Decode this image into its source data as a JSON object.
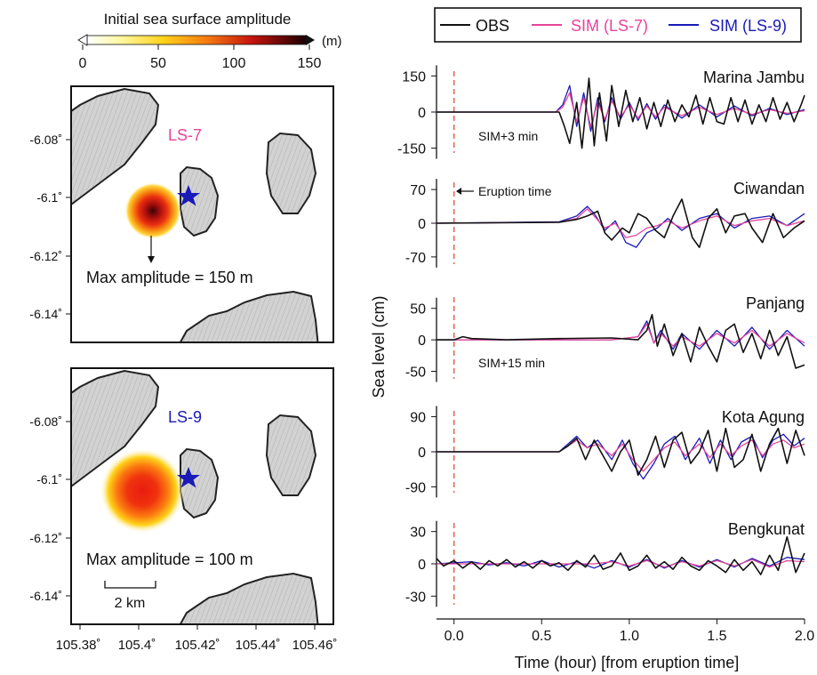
{
  "colorbar": {
    "title": "Initial sea surface amplitude",
    "unit": "(m)",
    "ticks": [
      "0",
      "50",
      "100",
      "150"
    ]
  },
  "maps": {
    "lat_ticks": [
      "-6.08˚",
      "-6.1˚",
      "-6.12˚",
      "-6.14˚"
    ],
    "lon_ticks": [
      "105.38˚",
      "105.4˚",
      "105.42˚",
      "105.44˚",
      "105.46˚"
    ],
    "top": {
      "label": "LS-7",
      "label_color": "#e8439a",
      "max_text": "Max amplitude = 150 m"
    },
    "bottom": {
      "label": "LS-9",
      "label_color": "#1a1ab8",
      "max_text": "Max amplitude = 100 m",
      "scale_text": "2 km"
    },
    "marker_color": "#1a1ab8"
  },
  "legend": {
    "items": [
      {
        "label": "OBS",
        "color": "#111111"
      },
      {
        "label": "SIM (LS-7)",
        "color": "#e8439a"
      },
      {
        "label": "SIM (LS-9)",
        "color": "#1a1ab8"
      }
    ]
  },
  "annotations": {
    "eruption": "Eruption time",
    "sim3": "SIM+3 min",
    "sim15": "SIM+15 min"
  },
  "axes": {
    "ylabel": "Sea level (cm)",
    "xlabel": "Time (hour) [from eruption time]",
    "xticks": [
      "0.0",
      "0.5",
      "1.0",
      "1.5",
      "2.0"
    ]
  },
  "chart_data": {
    "type": "line",
    "x_range": [
      -0.1,
      2.0
    ],
    "eruption_time": 0.0,
    "panels": [
      {
        "station": "Marina Jambu",
        "ylim": [
          -170,
          170
        ],
        "yticks": [
          "150",
          "0",
          "-150"
        ],
        "series": [
          {
            "name": "OBS",
            "x": [
              -0.1,
              0.5,
              0.6,
              0.63,
              0.66,
              0.7,
              0.73,
              0.77,
              0.8,
              0.83,
              0.87,
              0.9,
              0.94,
              0.98,
              1.02,
              1.06,
              1.1,
              1.14,
              1.18,
              1.22,
              1.26,
              1.3,
              1.34,
              1.38,
              1.42,
              1.46,
              1.5,
              1.54,
              1.58,
              1.62,
              1.66,
              1.7,
              1.74,
              1.78,
              1.82,
              1.86,
              1.9,
              1.94,
              1.98,
              2.0
            ],
            "y": [
              0,
              0,
              0,
              -60,
              -130,
              40,
              -150,
              140,
              -140,
              80,
              -120,
              110,
              -60,
              90,
              -40,
              60,
              -70,
              40,
              -60,
              50,
              -40,
              30,
              -20,
              70,
              -50,
              60,
              -40,
              -50,
              60,
              -40,
              50,
              -50,
              30,
              -40,
              60,
              -30,
              40,
              -40,
              30,
              70
            ]
          },
          {
            "name": "SIM (LS-7)",
            "x": [
              -0.1,
              0.58,
              0.62,
              0.66,
              0.7,
              0.74,
              0.78,
              0.82,
              0.86,
              0.9,
              0.95,
              1.0,
              1.05,
              1.1,
              1.15,
              1.2,
              1.3,
              1.4,
              1.5,
              1.6,
              1.7,
              1.8,
              1.9,
              2.0
            ],
            "y": [
              0,
              0,
              20,
              80,
              -40,
              60,
              -60,
              40,
              -30,
              45,
              -20,
              30,
              -25,
              25,
              -20,
              20,
              -15,
              20,
              -10,
              15,
              -10,
              10,
              -5,
              5
            ]
          },
          {
            "name": "SIM (LS-9)",
            "x": [
              -0.1,
              0.58,
              0.62,
              0.66,
              0.7,
              0.74,
              0.78,
              0.82,
              0.86,
              0.9,
              0.95,
              1.0,
              1.05,
              1.1,
              1.15,
              1.2,
              1.3,
              1.4,
              1.5,
              1.6,
              1.7,
              1.8,
              1.9,
              2.0
            ],
            "y": [
              0,
              0,
              30,
              110,
              -60,
              80,
              -80,
              60,
              -40,
              60,
              -30,
              40,
              -35,
              35,
              -30,
              30,
              -25,
              30,
              -20,
              25,
              -15,
              15,
              -10,
              10
            ]
          }
        ]
      },
      {
        "station": "Ciwandan",
        "ylim": [
          -85,
          85
        ],
        "yticks": [
          "70",
          "0",
          "-70"
        ],
        "series": [
          {
            "name": "OBS",
            "x": [
              -0.1,
              0.6,
              0.7,
              0.76,
              0.82,
              0.86,
              0.9,
              0.96,
              1.0,
              1.05,
              1.1,
              1.15,
              1.2,
              1.25,
              1.3,
              1.36,
              1.4,
              1.45,
              1.5,
              1.55,
              1.6,
              1.66,
              1.7,
              1.76,
              1.82,
              1.88,
              1.94,
              2.0
            ],
            "y": [
              0,
              2,
              8,
              15,
              25,
              -20,
              -35,
              -10,
              -20,
              20,
              10,
              -15,
              -30,
              15,
              50,
              -30,
              -50,
              10,
              30,
              -20,
              15,
              20,
              -10,
              -40,
              20,
              -30,
              -10,
              5
            ]
          },
          {
            "name": "SIM (LS-7)",
            "x": [
              -0.1,
              0.6,
              0.7,
              0.76,
              0.8,
              0.86,
              0.92,
              0.98,
              1.04,
              1.1,
              1.16,
              1.22,
              1.3,
              1.4,
              1.5,
              1.6,
              1.7,
              1.8,
              1.9,
              2.0
            ],
            "y": [
              0,
              2,
              10,
              30,
              15,
              -10,
              0,
              -30,
              -25,
              -10,
              -5,
              5,
              -10,
              5,
              15,
              -5,
              5,
              10,
              -5,
              5
            ]
          },
          {
            "name": "SIM (LS-9)",
            "x": [
              -0.1,
              0.6,
              0.7,
              0.76,
              0.8,
              0.86,
              0.92,
              0.98,
              1.04,
              1.1,
              1.16,
              1.22,
              1.3,
              1.4,
              1.5,
              1.6,
              1.7,
              1.8,
              1.9,
              2.0
            ],
            "y": [
              0,
              3,
              15,
              35,
              20,
              -15,
              5,
              -40,
              -50,
              -20,
              -10,
              10,
              -15,
              10,
              20,
              -10,
              10,
              15,
              -5,
              20
            ]
          }
        ]
      },
      {
        "station": "Panjang",
        "ylim": [
          -62,
          68
        ],
        "yticks": [
          "50",
          "0",
          "-50"
        ],
        "series": [
          {
            "name": "OBS",
            "x": [
              -0.1,
              0.0,
              0.05,
              0.1,
              0.3,
              0.6,
              0.9,
              1.05,
              1.1,
              1.13,
              1.16,
              1.2,
              1.25,
              1.3,
              1.35,
              1.4,
              1.45,
              1.5,
              1.55,
              1.6,
              1.65,
              1.7,
              1.75,
              1.8,
              1.85,
              1.9,
              1.95,
              2.0
            ],
            "y": [
              0,
              0,
              5,
              2,
              0,
              2,
              3,
              0,
              15,
              40,
              -10,
              25,
              -25,
              10,
              -35,
              20,
              -10,
              -35,
              15,
              25,
              -20,
              10,
              -30,
              15,
              -25,
              5,
              -45,
              -40
            ]
          },
          {
            "name": "SIM (LS-7)",
            "x": [
              -0.1,
              0.9,
              1.05,
              1.1,
              1.14,
              1.18,
              1.25,
              1.3,
              1.4,
              1.5,
              1.6,
              1.7,
              1.8,
              1.9,
              2.0
            ],
            "y": [
              0,
              0,
              5,
              25,
              -5,
              10,
              -10,
              5,
              -10,
              10,
              -5,
              15,
              -10,
              10,
              -5
            ]
          },
          {
            "name": "SIM (LS-9)",
            "x": [
              -0.1,
              0.9,
              1.05,
              1.1,
              1.14,
              1.18,
              1.25,
              1.3,
              1.4,
              1.5,
              1.6,
              1.7,
              1.8,
              1.9,
              2.0
            ],
            "y": [
              0,
              0,
              5,
              30,
              -5,
              15,
              -15,
              10,
              -15,
              15,
              -10,
              20,
              -15,
              15,
              -10
            ]
          }
        ]
      },
      {
        "station": "Kota Agung",
        "ylim": [
          -105,
          105
        ],
        "yticks": [
          "90",
          "0",
          "-90"
        ],
        "series": [
          {
            "name": "OBS",
            "x": [
              -0.1,
              0.6,
              0.65,
              0.7,
              0.75,
              0.8,
              0.85,
              0.9,
              0.95,
              1.0,
              1.05,
              1.1,
              1.15,
              1.2,
              1.25,
              1.3,
              1.35,
              1.4,
              1.45,
              1.5,
              1.55,
              1.6,
              1.65,
              1.7,
              1.75,
              1.8,
              1.85,
              1.9,
              1.95,
              2.0
            ],
            "y": [
              0,
              0,
              15,
              35,
              -20,
              30,
              -10,
              -50,
              0,
              30,
              -60,
              -20,
              40,
              -40,
              30,
              50,
              -30,
              0,
              55,
              -50,
              60,
              -40,
              -20,
              45,
              -50,
              20,
              60,
              -30,
              55,
              -10
            ]
          },
          {
            "name": "SIM (LS-7)",
            "x": [
              -0.1,
              0.6,
              0.65,
              0.7,
              0.76,
              0.82,
              0.9,
              0.96,
              1.02,
              1.08,
              1.14,
              1.2,
              1.26,
              1.32,
              1.4,
              1.46,
              1.52,
              1.58,
              1.64,
              1.7,
              1.76,
              1.82,
              1.88,
              1.94,
              2.0
            ],
            "y": [
              0,
              0,
              15,
              30,
              10,
              20,
              -10,
              20,
              -20,
              -50,
              -20,
              10,
              25,
              -10,
              20,
              -15,
              20,
              -10,
              15,
              30,
              -10,
              20,
              30,
              10,
              20
            ]
          },
          {
            "name": "SIM (LS-9)",
            "x": [
              -0.1,
              0.6,
              0.65,
              0.7,
              0.76,
              0.82,
              0.9,
              0.96,
              1.02,
              1.08,
              1.14,
              1.2,
              1.26,
              1.32,
              1.4,
              1.46,
              1.52,
              1.58,
              1.64,
              1.7,
              1.76,
              1.82,
              1.88,
              1.94,
              2.0
            ],
            "y": [
              0,
              0,
              20,
              40,
              10,
              30,
              -20,
              30,
              -30,
              -70,
              -30,
              20,
              40,
              -20,
              35,
              -30,
              30,
              -20,
              25,
              40,
              -15,
              30,
              45,
              15,
              35
            ]
          }
        ]
      },
      {
        "station": "Bengkunat",
        "ylim": [
          -38,
          38
        ],
        "yticks": [
          "30",
          "0",
          "-30"
        ],
        "series": [
          {
            "name": "OBS",
            "x": [
              -0.1,
              -0.06,
              0.0,
              0.05,
              0.1,
              0.15,
              0.2,
              0.25,
              0.3,
              0.35,
              0.4,
              0.45,
              0.5,
              0.55,
              0.6,
              0.65,
              0.7,
              0.75,
              0.8,
              0.85,
              0.9,
              0.95,
              1.0,
              1.05,
              1.1,
              1.15,
              1.2,
              1.25,
              1.3,
              1.35,
              1.4,
              1.45,
              1.5,
              1.55,
              1.6,
              1.65,
              1.7,
              1.75,
              1.8,
              1.85,
              1.9,
              1.95,
              2.0
            ],
            "y": [
              5,
              -2,
              3,
              -4,
              2,
              -5,
              3,
              -2,
              4,
              -3,
              2,
              -4,
              3,
              -2,
              1,
              -6,
              3,
              -3,
              8,
              -5,
              -2,
              10,
              -6,
              -2,
              8,
              -4,
              2,
              -5,
              6,
              -2,
              -6,
              3,
              -2,
              -8,
              4,
              -6,
              2,
              -10,
              8,
              -6,
              25,
              -8,
              10
            ]
          },
          {
            "name": "SIM (LS-7)",
            "x": [
              -0.1,
              0.5,
              0.8,
              0.9,
              1.0,
              1.1,
              1.2,
              1.3,
              1.4,
              1.5,
              1.6,
              1.7,
              1.8,
              1.9,
              2.0
            ],
            "y": [
              0,
              0,
              0,
              2,
              -2,
              3,
              -3,
              2,
              -2,
              3,
              -2,
              4,
              -3,
              3,
              2
            ]
          },
          {
            "name": "SIM (LS-9)",
            "x": [
              -0.1,
              0.1,
              0.2,
              0.3,
              0.4,
              0.5,
              0.6,
              0.7,
              0.8,
              0.9,
              1.0,
              1.1,
              1.2,
              1.3,
              1.4,
              1.5,
              1.6,
              1.7,
              1.8,
              1.9,
              2.0
            ],
            "y": [
              0,
              2,
              -1,
              1,
              -2,
              3,
              -3,
              2,
              -4,
              3,
              -3,
              4,
              -4,
              3,
              -3,
              4,
              -3,
              5,
              -2,
              6,
              4
            ]
          }
        ]
      }
    ]
  }
}
